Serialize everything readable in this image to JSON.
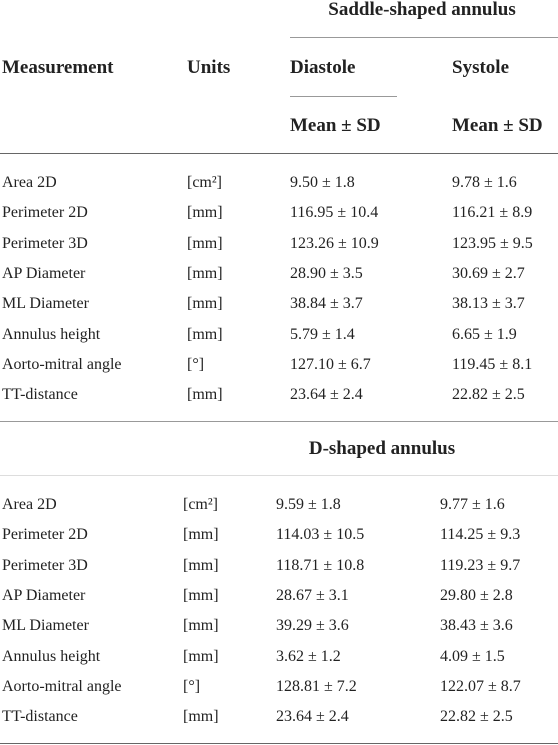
{
  "header": {
    "group_title": "Saddle-shaped annulus",
    "columns": [
      "Measurement",
      "Units",
      "Diastole",
      "Systole"
    ],
    "subheader": [
      "Mean ± SD",
      "Mean ± SD"
    ]
  },
  "sections": [
    {
      "rows": [
        [
          "Area 2D",
          "[cm²]",
          "9.50 ± 1.8",
          "9.78 ± 1.6"
        ],
        [
          "Perimeter 2D",
          "[mm]",
          "116.95 ± 10.4",
          "116.21 ± 8.9"
        ],
        [
          "Perimeter 3D",
          "[mm]",
          "123.26 ± 10.9",
          "123.95 ± 9.5"
        ],
        [
          "AP Diameter",
          "[mm]",
          "28.90 ± 3.5",
          "30.69 ± 2.7"
        ],
        [
          "ML Diameter",
          "[mm]",
          "38.84 ± 3.7",
          "38.13 ± 3.7"
        ],
        [
          "Annulus height",
          "[mm]",
          "5.79 ± 1.4",
          "6.65 ± 1.9"
        ],
        [
          "Aorto-mitral angle",
          "[°]",
          "127.10 ± 6.7",
          "119.45 ± 8.1"
        ],
        [
          "TT-distance",
          "[mm]",
          "23.64 ± 2.4",
          "22.82 ± 2.5"
        ]
      ]
    },
    {
      "title": "D-shaped annulus",
      "rows": [
        [
          "Area 2D",
          "[cm²]",
          "9.59 ± 1.8",
          "9.77 ± 1.6"
        ],
        [
          "Perimeter 2D",
          "[mm]",
          "114.03 ± 10.5",
          "114.25 ± 9.3"
        ],
        [
          "Perimeter 3D",
          "[mm]",
          "118.71 ± 10.8",
          "119.23 ± 9.7"
        ],
        [
          "AP Diameter",
          "[mm]",
          "28.67 ± 3.1",
          "29.80 ± 2.8"
        ],
        [
          "ML Diameter",
          "[mm]",
          "39.29 ± 3.6",
          "38.43 ± 3.6"
        ],
        [
          "Annulus height",
          "[mm]",
          "3.62 ± 1.2",
          "4.09 ± 1.5"
        ],
        [
          "Aorto-mitral angle",
          "[°]",
          "128.81 ± 7.2",
          "122.07 ± 8.7"
        ],
        [
          "TT-distance",
          "[mm]",
          "23.64 ± 2.4",
          "22.82 ± 2.5"
        ]
      ]
    }
  ]
}
